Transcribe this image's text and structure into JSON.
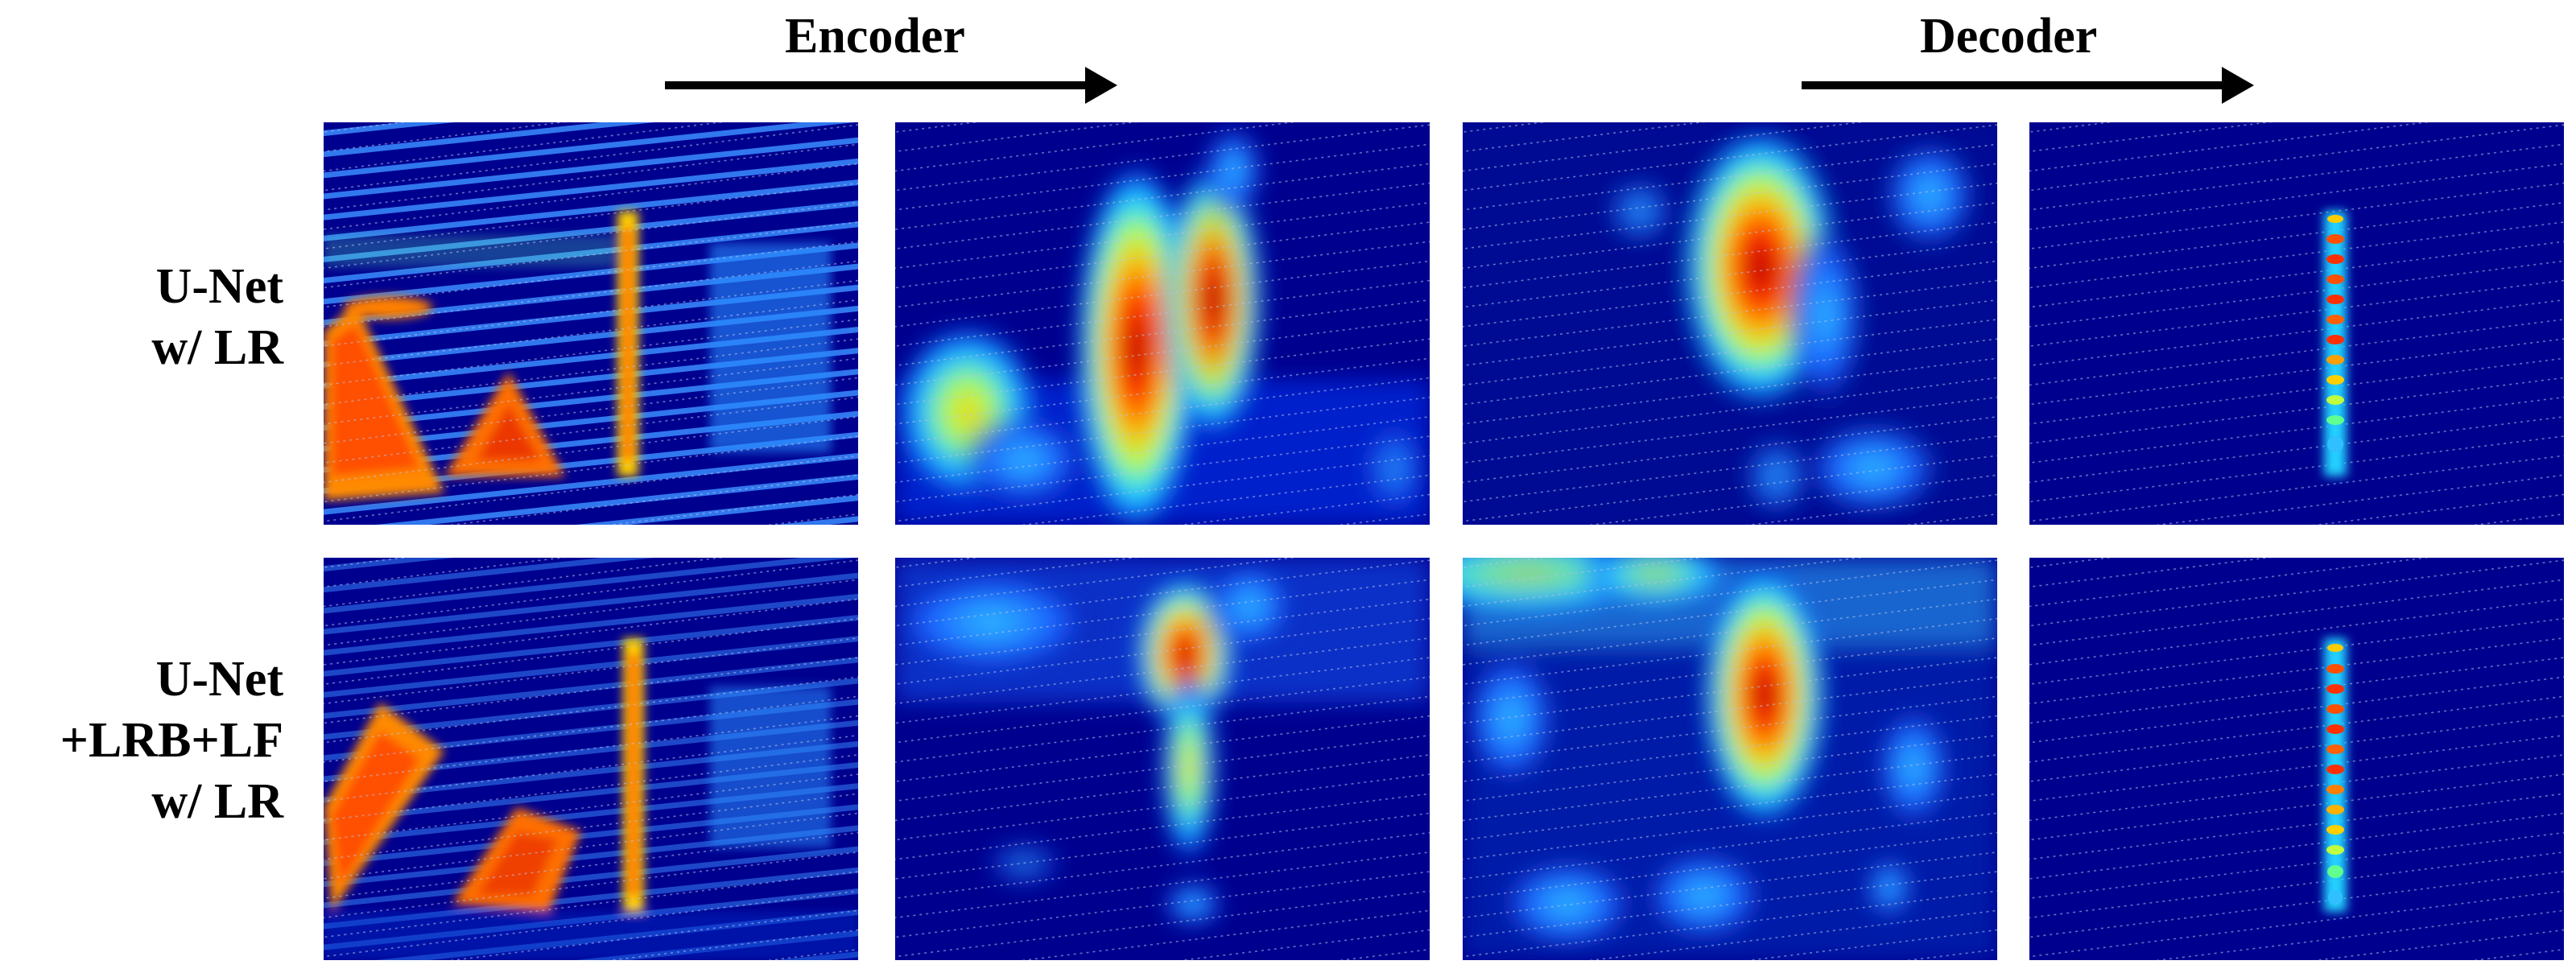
{
  "headers": {
    "encoder": "Encoder",
    "decoder": "Decoder"
  },
  "rows": [
    {
      "label_lines": [
        "U-Net",
        "w/ LR"
      ]
    },
    {
      "label_lines": [
        "U-Net",
        "+LRB+LF",
        "w/ LR"
      ]
    }
  ],
  "colormap": "jet",
  "colors": {
    "background": "#ffffff",
    "jet_low": "#00008f",
    "jet_high": "#800000",
    "text": "#000000"
  }
}
